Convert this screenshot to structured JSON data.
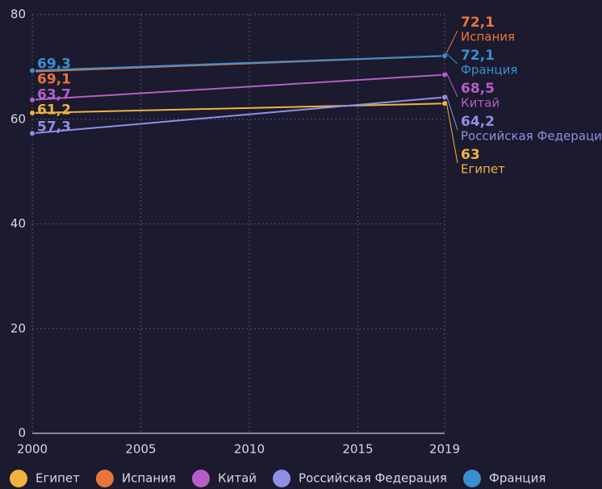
{
  "chart_data": {
    "type": "line",
    "x": [
      2000,
      2019
    ],
    "xlim": [
      2000,
      2019
    ],
    "xticks": [
      2000,
      2005,
      2010,
      2015,
      2019
    ],
    "ylim": [
      0,
      80
    ],
    "yticks": [
      0,
      20,
      40,
      60,
      80
    ],
    "grid": true,
    "legend": "bottom",
    "series": [
      {
        "name": "Египет",
        "color": "#f0b43c",
        "values": [
          61.2,
          63
        ],
        "value_labels": [
          "61,2",
          "63"
        ]
      },
      {
        "name": "Испания",
        "color": "#e8743b",
        "values": [
          69.1,
          72.1
        ],
        "value_labels": [
          "69,1",
          "72,1"
        ]
      },
      {
        "name": "Китай",
        "color": "#b45fc8",
        "values": [
          63.7,
          68.5
        ],
        "value_labels": [
          "63,7",
          "68,5"
        ]
      },
      {
        "name": "Российская Федерация",
        "color": "#8f8fe8",
        "values": [
          57.3,
          64.2
        ],
        "value_labels": [
          "57,3",
          "64,2"
        ]
      },
      {
        "name": "Франция",
        "color": "#3a8fd0",
        "values": [
          69.3,
          72.1
        ],
        "value_labels": [
          "69,3",
          "72,1"
        ]
      }
    ]
  }
}
